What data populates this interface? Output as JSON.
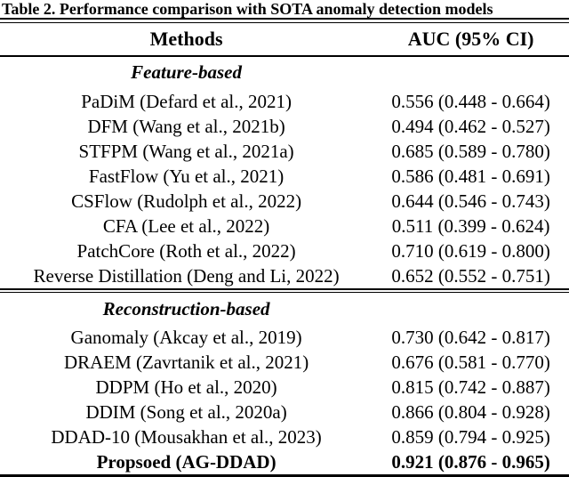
{
  "title": "Table 2. Performance comparison with SOTA anomaly detection models",
  "columns": {
    "method": "Methods",
    "auc": "AUC (95% CI)"
  },
  "sections": [
    {
      "label": "Feature-based",
      "rows": [
        {
          "method": "PaDiM (Defard et al., 2021)",
          "auc": "0.556 (0.448 - 0.664)"
        },
        {
          "method": "DFM (Wang et al., 2021b)",
          "auc": "0.494 (0.462 - 0.527)"
        },
        {
          "method": "STFPM (Wang et al., 2021a)",
          "auc": "0.685 (0.589 - 0.780)"
        },
        {
          "method": "FastFlow (Yu et al., 2021)",
          "auc": "0.586 (0.481 - 0.691)"
        },
        {
          "method": "CSFlow (Rudolph et al., 2022)",
          "auc": "0.644 (0.546 - 0.743)"
        },
        {
          "method": "CFA (Lee et al., 2022)",
          "auc": "0.511 (0.399 - 0.624)"
        },
        {
          "method": "PatchCore (Roth et al., 2022)",
          "auc": "0.710 (0.619 - 0.800)"
        },
        {
          "method": "Reverse Distillation (Deng and Li, 2022)",
          "auc": "0.652 (0.552 - 0.751)"
        }
      ]
    },
    {
      "label": "Reconstruction-based",
      "rows": [
        {
          "method": "Ganomaly (Akcay et al., 2019)",
          "auc": "0.730 (0.642 - 0.817)"
        },
        {
          "method": "DRAEM (Zavrtanik et al., 2021)",
          "auc": "0.676 (0.581 - 0.770)"
        },
        {
          "method": "DDPM (Ho et al., 2020)",
          "auc": "0.815 (0.742 - 0.887)"
        },
        {
          "method": "DDIM (Song et al., 2020a)",
          "auc": "0.866 (0.804 - 0.928)"
        },
        {
          "method": "DDAD-10 (Mousakhan et al., 2023)",
          "auc": "0.859 (0.794 - 0.925)"
        },
        {
          "method": "Propsoed (AG-DDAD)",
          "auc": "0.921 (0.876 - 0.965)",
          "emphasis": "bold"
        }
      ]
    }
  ],
  "colors": {
    "text": "#000000",
    "background": "#ffffff",
    "rule": "#000000"
  }
}
